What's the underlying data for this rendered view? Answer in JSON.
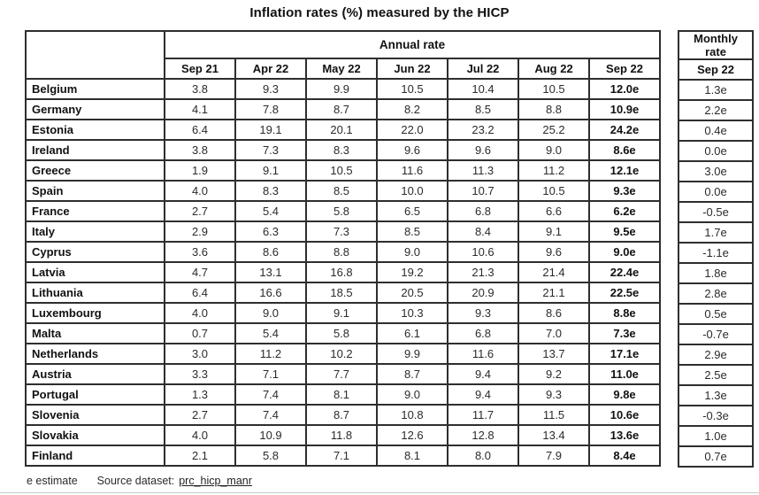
{
  "title": "Inflation rates (%) measured by the HICP",
  "table": {
    "annual_header": "Annual rate",
    "monthly_header": "Monthly rate",
    "annual_columns": [
      "Sep 21",
      "Apr 22",
      "May 22",
      "Jun 22",
      "Jul 22",
      "Aug 22",
      "Sep 22"
    ],
    "monthly_column": "Sep 22",
    "rows": [
      {
        "country": "Belgium",
        "annual": [
          "3.8",
          "9.3",
          "9.9",
          "10.5",
          "10.4",
          "10.5",
          "12.0e"
        ],
        "monthly": "1.3e"
      },
      {
        "country": "Germany",
        "annual": [
          "4.1",
          "7.8",
          "8.7",
          "8.2",
          "8.5",
          "8.8",
          "10.9e"
        ],
        "monthly": "2.2e"
      },
      {
        "country": "Estonia",
        "annual": [
          "6.4",
          "19.1",
          "20.1",
          "22.0",
          "23.2",
          "25.2",
          "24.2e"
        ],
        "monthly": "0.4e"
      },
      {
        "country": "Ireland",
        "annual": [
          "3.8",
          "7.3",
          "8.3",
          "9.6",
          "9.6",
          "9.0",
          "8.6e"
        ],
        "monthly": "0.0e"
      },
      {
        "country": "Greece",
        "annual": [
          "1.9",
          "9.1",
          "10.5",
          "11.6",
          "11.3",
          "11.2",
          "12.1e"
        ],
        "monthly": "3.0e"
      },
      {
        "country": "Spain",
        "annual": [
          "4.0",
          "8.3",
          "8.5",
          "10.0",
          "10.7",
          "10.5",
          "9.3e"
        ],
        "monthly": "0.0e"
      },
      {
        "country": "France",
        "annual": [
          "2.7",
          "5.4",
          "5.8",
          "6.5",
          "6.8",
          "6.6",
          "6.2e"
        ],
        "monthly": "-0.5e"
      },
      {
        "country": "Italy",
        "annual": [
          "2.9",
          "6.3",
          "7.3",
          "8.5",
          "8.4",
          "9.1",
          "9.5e"
        ],
        "monthly": "1.7e"
      },
      {
        "country": "Cyprus",
        "annual": [
          "3.6",
          "8.6",
          "8.8",
          "9.0",
          "10.6",
          "9.6",
          "9.0e"
        ],
        "monthly": "-1.1e"
      },
      {
        "country": "Latvia",
        "annual": [
          "4.7",
          "13.1",
          "16.8",
          "19.2",
          "21.3",
          "21.4",
          "22.4e"
        ],
        "monthly": "1.8e"
      },
      {
        "country": "Lithuania",
        "annual": [
          "6.4",
          "16.6",
          "18.5",
          "20.5",
          "20.9",
          "21.1",
          "22.5e"
        ],
        "monthly": "2.8e"
      },
      {
        "country": "Luxembourg",
        "annual": [
          "4.0",
          "9.0",
          "9.1",
          "10.3",
          "9.3",
          "8.6",
          "8.8e"
        ],
        "monthly": "0.5e"
      },
      {
        "country": "Malta",
        "annual": [
          "0.7",
          "5.4",
          "5.8",
          "6.1",
          "6.8",
          "7.0",
          "7.3e"
        ],
        "monthly": "-0.7e"
      },
      {
        "country": "Netherlands",
        "annual": [
          "3.0",
          "11.2",
          "10.2",
          "9.9",
          "11.6",
          "13.7",
          "17.1e"
        ],
        "monthly": "2.9e"
      },
      {
        "country": "Austria",
        "annual": [
          "3.3",
          "7.1",
          "7.7",
          "8.7",
          "9.4",
          "9.2",
          "11.0e"
        ],
        "monthly": "2.5e"
      },
      {
        "country": "Portugal",
        "annual": [
          "1.3",
          "7.4",
          "8.1",
          "9.0",
          "9.4",
          "9.3",
          "9.8e"
        ],
        "monthly": "1.3e"
      },
      {
        "country": "Slovenia",
        "annual": [
          "2.7",
          "7.4",
          "8.7",
          "10.8",
          "11.7",
          "11.5",
          "10.6e"
        ],
        "monthly": "-0.3e"
      },
      {
        "country": "Slovakia",
        "annual": [
          "4.0",
          "10.9",
          "11.8",
          "12.6",
          "12.8",
          "13.4",
          "13.6e"
        ],
        "monthly": "1.0e"
      },
      {
        "country": "Finland",
        "annual": [
          "2.1",
          "5.8",
          "7.1",
          "8.1",
          "8.0",
          "7.9",
          "8.4e"
        ],
        "monthly": "0.7e"
      }
    ]
  },
  "footer": {
    "note": "e estimate",
    "source_label": "Source dataset:",
    "source_link": "prc_hicp_manr"
  },
  "colors": {
    "border": "#2e2e2e",
    "text": "#2b2b2b",
    "background": "#ffffff"
  }
}
